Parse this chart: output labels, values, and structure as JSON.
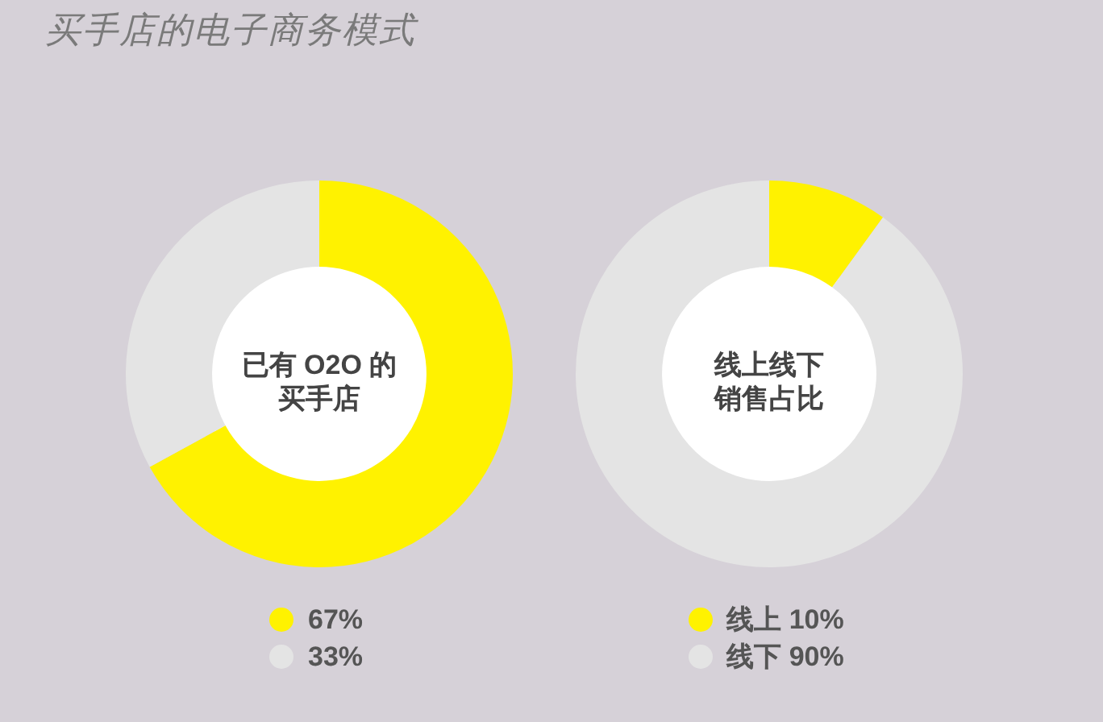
{
  "chart_data": [
    {
      "type": "donut",
      "title": "买手店的电子商务模式",
      "categories": [
        "67%",
        "33%"
      ],
      "values": [
        67,
        33
      ],
      "colors": [
        "#fff200",
        "#e4e4e4"
      ],
      "annotations": [
        "已有 O2O 的",
        "买手店"
      ],
      "legend": "bottom"
    },
    {
      "type": "donut",
      "categories": [
        "线上",
        "线下"
      ],
      "values": [
        10,
        90
      ],
      "colors": [
        "#fff200",
        "#e4e4e4"
      ],
      "value_labels": [
        "10%",
        "90%"
      ],
      "annotations": [
        "线上线下",
        "销售占比"
      ],
      "legend": "bottom"
    }
  ]
}
